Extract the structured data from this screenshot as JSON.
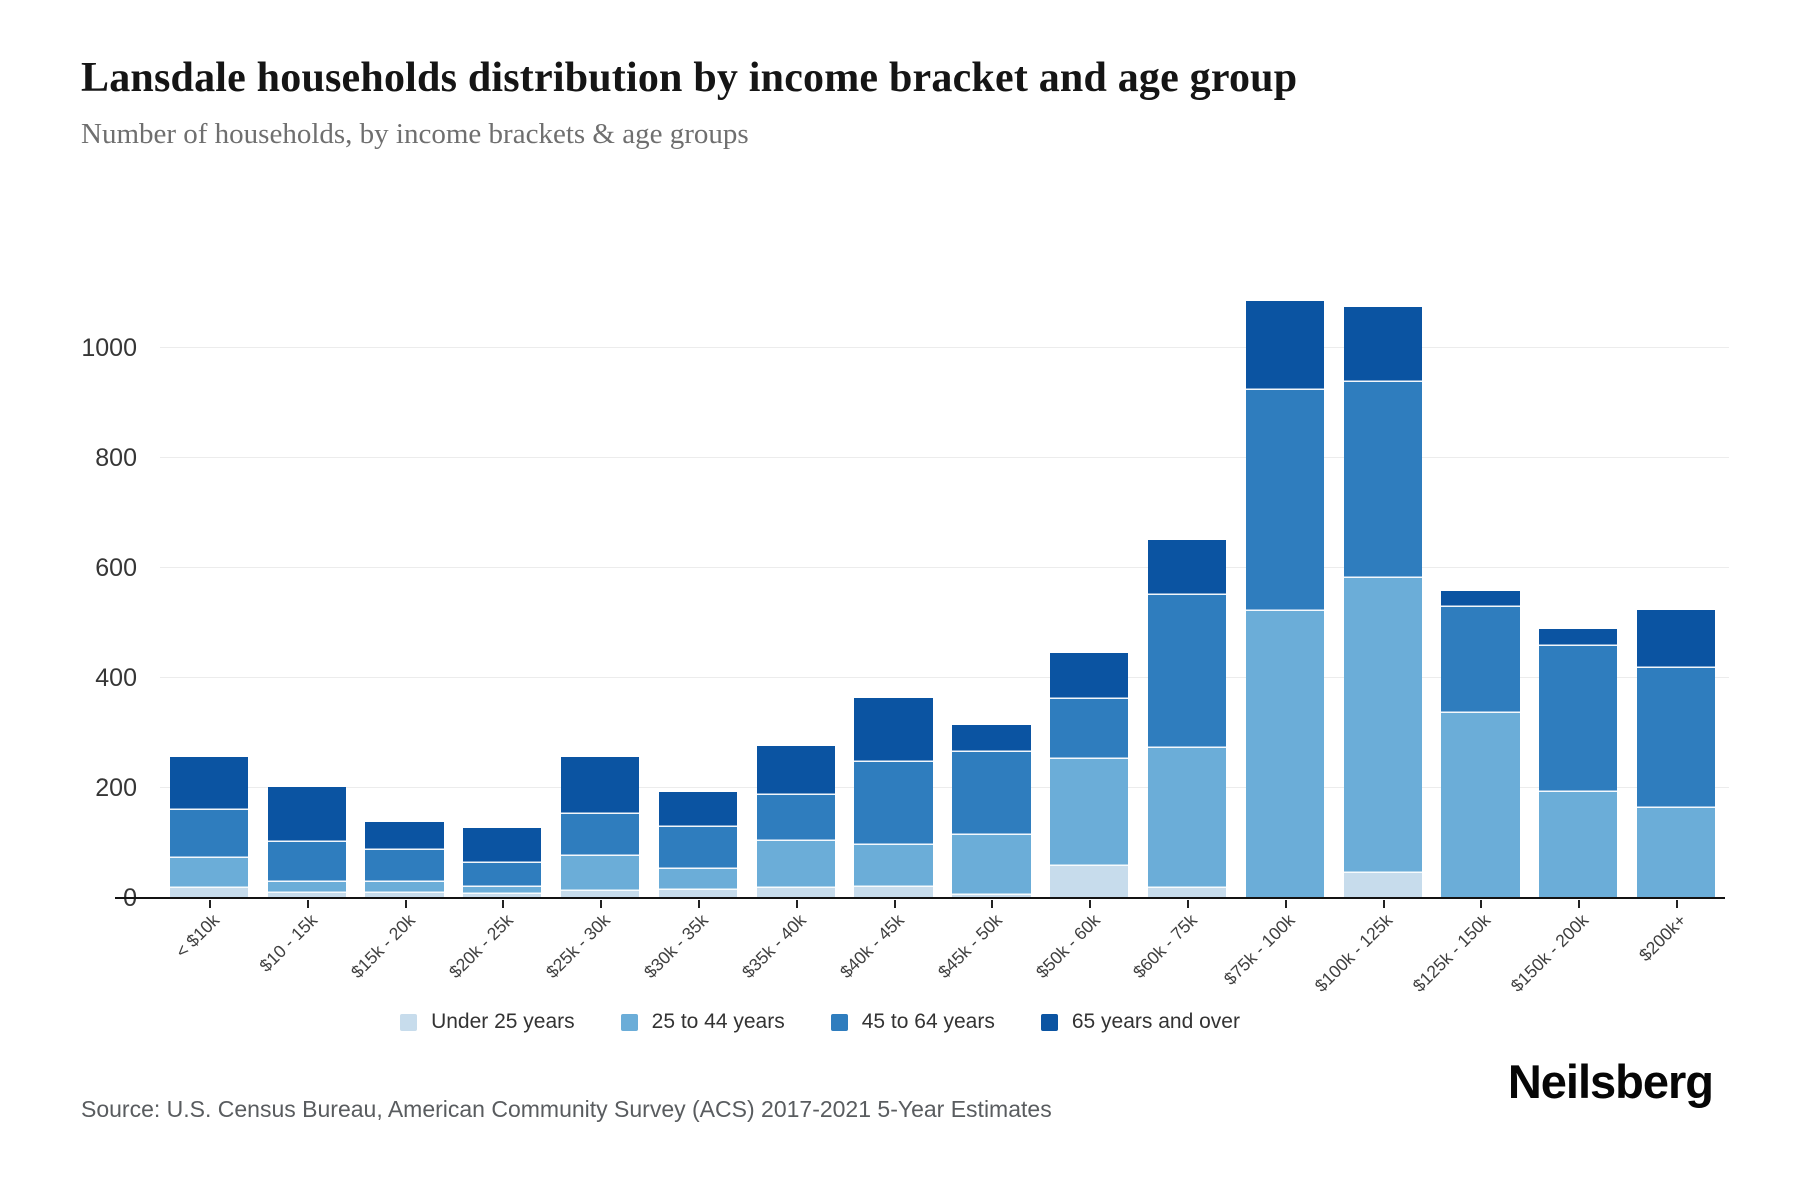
{
  "header": {
    "title": "Lansdale households distribution by income bracket and age group",
    "subtitle": "Number of households, by income brackets & age groups"
  },
  "chart_data": {
    "type": "bar",
    "stacked": true,
    "title": "Lansdale households distribution by income bracket and age group",
    "subtitle": "Number of households, by income brackets & age groups",
    "xlabel": "",
    "ylabel": "",
    "categories": [
      "< $10k",
      "$10 - 15k",
      "$15k - 20k",
      "$20k - 25k",
      "$25k - 30k",
      "$30k - 35k",
      "$35k - 40k",
      "$40k - 45k",
      "$45k - 50k",
      "$50k - 60k",
      "$60k - 75k",
      "$75k - 100k",
      "$100k - 125k",
      "$125k - 150k",
      "$150k - 200k",
      "$200k+"
    ],
    "series": [
      {
        "name": "Under 25 years",
        "color": "#c7dcec",
        "values": [
          18,
          10,
          10,
          8,
          12,
          15,
          18,
          20,
          5,
          58,
          18,
          0,
          45,
          0,
          0,
          0
        ]
      },
      {
        "name": "25 to 44 years",
        "color": "#6badd8",
        "values": [
          55,
          20,
          19,
          12,
          64,
          37,
          85,
          77,
          110,
          195,
          255,
          521,
          537,
          336,
          192,
          164
        ]
      },
      {
        "name": "45 to 64 years",
        "color": "#2f7dbe",
        "values": [
          87,
          72,
          58,
          43,
          77,
          78,
          85,
          151,
          150,
          108,
          278,
          403,
          356,
          194,
          266,
          254
        ]
      },
      {
        "name": "65 years and over",
        "color": "#0b54a2",
        "values": [
          96,
          100,
          51,
          64,
          103,
          62,
          88,
          116,
          50,
          84,
          100,
          161,
          137,
          28,
          31,
          106
        ]
      }
    ],
    "totals": [
      256,
      202,
      138,
      127,
      256,
      192,
      276,
      364,
      315,
      445,
      651,
      1085,
      1075,
      558,
      489,
      524
    ],
    "yticks": [
      0,
      200,
      400,
      600,
      800,
      1000
    ],
    "ylim": [
      0,
      1100
    ],
    "grid": "horizontal",
    "legend_position": "bottom"
  },
  "footer": {
    "source": "Source: U.S. Census Bureau, American Community Survey (ACS) 2017-2021 5-Year Estimates",
    "brand": "Neilsberg"
  }
}
